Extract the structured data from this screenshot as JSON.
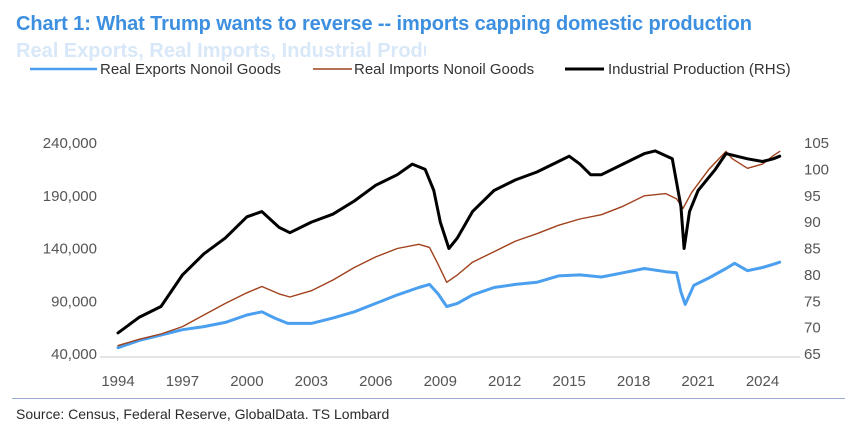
{
  "title": "Chart 1: What Trump wants to reverse -- imports capping domestic production",
  "subtitle": "Real Exports, Real Imports, Industrial Production",
  "source": "Source: Census, Federal Reserve, GlobalData. TS Lombard",
  "chart_data": {
    "type": "line",
    "title": "Chart 1: What Trump wants to reverse -- imports capping domestic production",
    "x_range": [
      1994,
      2025
    ],
    "x_ticks": [
      "1994",
      "1997",
      "2000",
      "2003",
      "2006",
      "2009",
      "2012",
      "2015",
      "2018",
      "2021",
      "2024"
    ],
    "y_left": {
      "range": [
        40000,
        240000
      ],
      "ticks": [
        "40,000",
        "90,000",
        "140,000",
        "190,000",
        "240,000"
      ]
    },
    "y_right": {
      "range": [
        65,
        105
      ],
      "ticks": [
        "65",
        "70",
        "75",
        "80",
        "85",
        "90",
        "95",
        "100",
        "105"
      ]
    },
    "legend_position": "top",
    "series": [
      {
        "name": "Real Exports Nonoil Goods",
        "axis": "left",
        "color": "#4a9fef",
        "points": [
          [
            1994.0,
            46000
          ],
          [
            1995.0,
            53000
          ],
          [
            1996.0,
            58000
          ],
          [
            1997.0,
            63000
          ],
          [
            1998.0,
            66000
          ],
          [
            1999.0,
            70000
          ],
          [
            2000.0,
            77000
          ],
          [
            2000.7,
            80000
          ],
          [
            2001.3,
            74000
          ],
          [
            2001.9,
            69000
          ],
          [
            2002.5,
            69000
          ],
          [
            2003.0,
            69000
          ],
          [
            2004.0,
            74000
          ],
          [
            2005.0,
            80000
          ],
          [
            2006.0,
            88000
          ],
          [
            2007.0,
            96000
          ],
          [
            2008.0,
            103000
          ],
          [
            2008.5,
            106000
          ],
          [
            2008.9,
            97000
          ],
          [
            2009.3,
            85000
          ],
          [
            2009.8,
            88000
          ],
          [
            2010.5,
            96000
          ],
          [
            2011.5,
            103000
          ],
          [
            2012.5,
            106000
          ],
          [
            2013.5,
            108000
          ],
          [
            2014.5,
            114000
          ],
          [
            2015.5,
            115000
          ],
          [
            2016.5,
            113000
          ],
          [
            2017.5,
            117000
          ],
          [
            2018.5,
            121000
          ],
          [
            2019.5,
            118000
          ],
          [
            2020.0,
            117000
          ],
          [
            2020.2,
            99000
          ],
          [
            2020.4,
            87000
          ],
          [
            2020.8,
            105000
          ],
          [
            2021.5,
            112000
          ],
          [
            2022.3,
            121000
          ],
          [
            2022.7,
            126000
          ],
          [
            2023.3,
            119000
          ],
          [
            2024.0,
            122000
          ],
          [
            2024.5,
            125000
          ],
          [
            2024.8,
            127000
          ]
        ]
      },
      {
        "name": "Real Imports Nonoil Goods",
        "axis": "left",
        "color": "#a0411c",
        "points": [
          [
            1994.0,
            48000
          ],
          [
            1995.0,
            54000
          ],
          [
            1996.0,
            59000
          ],
          [
            1997.0,
            66000
          ],
          [
            1998.0,
            77000
          ],
          [
            1999.0,
            88000
          ],
          [
            2000.0,
            98000
          ],
          [
            2000.7,
            104000
          ],
          [
            2001.5,
            97000
          ],
          [
            2002.0,
            94000
          ],
          [
            2003.0,
            100000
          ],
          [
            2004.0,
            110000
          ],
          [
            2005.0,
            122000
          ],
          [
            2006.0,
            132000
          ],
          [
            2007.0,
            140000
          ],
          [
            2008.0,
            144000
          ],
          [
            2008.5,
            141000
          ],
          [
            2008.9,
            125000
          ],
          [
            2009.3,
            108000
          ],
          [
            2009.8,
            115000
          ],
          [
            2010.5,
            127000
          ],
          [
            2011.5,
            137000
          ],
          [
            2012.5,
            147000
          ],
          [
            2013.5,
            154000
          ],
          [
            2014.5,
            162000
          ],
          [
            2015.5,
            168000
          ],
          [
            2016.5,
            172000
          ],
          [
            2017.5,
            180000
          ],
          [
            2018.5,
            190000
          ],
          [
            2019.5,
            192000
          ],
          [
            2020.0,
            187000
          ],
          [
            2020.3,
            178000
          ],
          [
            2020.7,
            193000
          ],
          [
            2021.5,
            215000
          ],
          [
            2022.3,
            232000
          ],
          [
            2022.6,
            225000
          ],
          [
            2023.3,
            216000
          ],
          [
            2024.0,
            220000
          ],
          [
            2024.5,
            228000
          ],
          [
            2024.8,
            232000
          ]
        ]
      },
      {
        "name": "Industrial Production (RHS)",
        "axis": "right",
        "color": "#000000",
        "points": [
          [
            1994.0,
            69
          ],
          [
            1995.0,
            72
          ],
          [
            1996.0,
            74
          ],
          [
            1997.0,
            80
          ],
          [
            1998.0,
            84
          ],
          [
            1999.0,
            87
          ],
          [
            2000.0,
            91
          ],
          [
            2000.7,
            92
          ],
          [
            2001.5,
            89
          ],
          [
            2002.0,
            88
          ],
          [
            2003.0,
            90
          ],
          [
            2004.0,
            91.5
          ],
          [
            2005.0,
            94
          ],
          [
            2006.0,
            97
          ],
          [
            2007.0,
            99
          ],
          [
            2007.7,
            101
          ],
          [
            2008.3,
            100
          ],
          [
            2008.7,
            96
          ],
          [
            2009.0,
            90
          ],
          [
            2009.4,
            85
          ],
          [
            2009.8,
            87
          ],
          [
            2010.5,
            92
          ],
          [
            2011.5,
            96
          ],
          [
            2012.5,
            98
          ],
          [
            2013.5,
            99.5
          ],
          [
            2014.5,
            101.5
          ],
          [
            2015.0,
            102.5
          ],
          [
            2015.5,
            101
          ],
          [
            2016.0,
            99
          ],
          [
            2016.5,
            99
          ],
          [
            2017.5,
            101
          ],
          [
            2018.5,
            103
          ],
          [
            2019.0,
            103.5
          ],
          [
            2019.8,
            102
          ],
          [
            2020.2,
            93
          ],
          [
            2020.35,
            85
          ],
          [
            2020.6,
            92
          ],
          [
            2021.0,
            96
          ],
          [
            2021.8,
            100
          ],
          [
            2022.3,
            103
          ],
          [
            2022.8,
            102.5
          ],
          [
            2023.3,
            102
          ],
          [
            2024.0,
            101.5
          ],
          [
            2024.5,
            102
          ],
          [
            2024.8,
            102.5
          ]
        ]
      }
    ]
  }
}
